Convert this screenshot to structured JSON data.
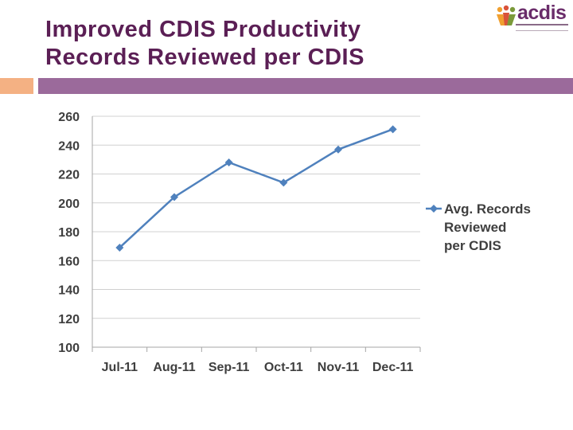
{
  "slide": {
    "title_line1": "Improved CDIS Productivity",
    "title_line2": "Records Reviewed per CDIS"
  },
  "logo": {
    "text": "acdis",
    "icon": "acdis-people-logo"
  },
  "colors": {
    "title": "#5b1f55",
    "accent_orange": "#f4b183",
    "accent_purple": "#9b6a9b",
    "series": "#4f81bd"
  },
  "chart_data": {
    "type": "line",
    "categories": [
      "Jul-11",
      "Aug-11",
      "Sep-11",
      "Oct-11",
      "Nov-11",
      "Dec-11"
    ],
    "series": [
      {
        "name": "Avg. Records Reviewed per CDIS",
        "values": [
          169,
          204,
          228,
          214,
          237,
          251
        ],
        "color": "#4f81bd",
        "marker": "diamond"
      }
    ],
    "ylim": [
      100,
      260
    ],
    "yticks": [
      100,
      120,
      140,
      160,
      180,
      200,
      220,
      240,
      260
    ],
    "grid": true,
    "legend": "right",
    "legend_lines": [
      "Avg. Records",
      "Reviewed",
      "per CDIS"
    ]
  }
}
